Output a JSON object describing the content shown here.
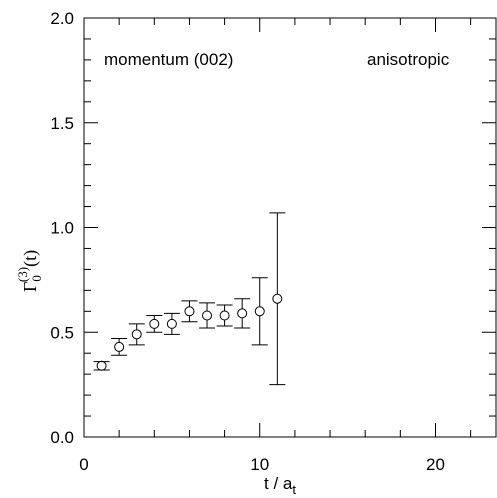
{
  "chart_data": {
    "type": "scatter",
    "title": "",
    "annotations": {
      "left": "momentum (002)",
      "right": "anisotropic"
    },
    "xlabel": {
      "main": "t / a",
      "sub": "t"
    },
    "ylabel": {
      "base": "Γ",
      "sub": "0",
      "sup": "(3)",
      "tail": "(t)"
    },
    "xlim": [
      0,
      23.5
    ],
    "ylim": [
      0,
      2.0
    ],
    "x_major_ticks": [
      0,
      10,
      20
    ],
    "x_tick_labels": [
      "0",
      "10",
      "20"
    ],
    "x_minor_step": 2,
    "y_major_ticks": [
      0,
      0.5,
      1.0,
      1.5,
      2.0
    ],
    "y_tick_labels": [
      "0.0",
      "0.5",
      "1.0",
      "1.5",
      "2.0"
    ],
    "y_minor_step": 0.1,
    "grid": false,
    "marker": "open-circle",
    "points": [
      {
        "x": 1,
        "y": 0.34,
        "err": 0.02
      },
      {
        "x": 2,
        "y": 0.43,
        "err": 0.04
      },
      {
        "x": 3,
        "y": 0.49,
        "err": 0.05
      },
      {
        "x": 4,
        "y": 0.54,
        "err": 0.04
      },
      {
        "x": 5,
        "y": 0.54,
        "err": 0.05
      },
      {
        "x": 6,
        "y": 0.6,
        "err": 0.05
      },
      {
        "x": 7,
        "y": 0.58,
        "err": 0.06
      },
      {
        "x": 8,
        "y": 0.58,
        "err": 0.05
      },
      {
        "x": 9,
        "y": 0.59,
        "err": 0.07
      },
      {
        "x": 10,
        "y": 0.6,
        "err": 0.16
      },
      {
        "x": 11,
        "y": 0.66,
        "err": 0.41
      }
    ]
  }
}
